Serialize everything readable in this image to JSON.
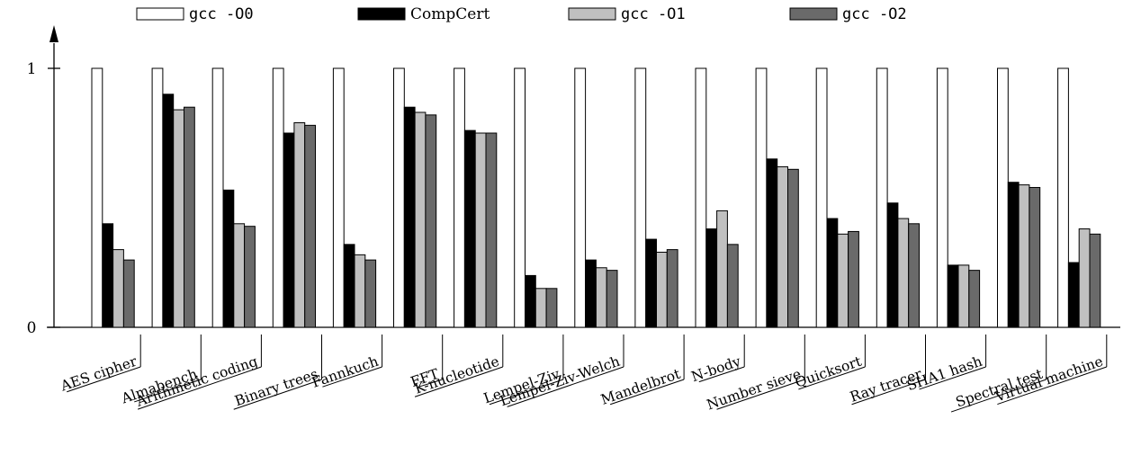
{
  "chart_data": {
    "type": "bar",
    "ylim": [
      0,
      1
    ],
    "yticks": [
      "0",
      "1"
    ],
    "legend_position": "top",
    "categories": [
      "AES cipher",
      "Almabench",
      "Arithmetic coding",
      "Binary trees",
      "Fannkuch",
      "FFT",
      "K-nucleotide",
      "Lempel-Ziv",
      "Lempel-Ziv-Welch",
      "Mandelbrot",
      "N-body",
      "Number sieve",
      "Quicksort",
      "Ray tracer",
      "SHA1 hash",
      "Spectral test",
      "Virtual machine"
    ],
    "series": [
      {
        "name": "gcc -O0",
        "color": "#ffffff",
        "font": "mono",
        "values": [
          1,
          1,
          1,
          1,
          1,
          1,
          1,
          1,
          1,
          1,
          1,
          1,
          1,
          1,
          1,
          1,
          1
        ]
      },
      {
        "name": "CompCert",
        "color": "#000000",
        "font": "serif",
        "values": [
          0.4,
          0.9,
          0.53,
          0.75,
          0.32,
          0.85,
          0.76,
          0.2,
          0.26,
          0.34,
          0.38,
          0.65,
          0.42,
          0.48,
          0.24,
          0.56,
          0.25
        ]
      },
      {
        "name": "gcc -O1",
        "color": "#c0c0c0",
        "font": "mono",
        "values": [
          0.3,
          0.84,
          0.4,
          0.79,
          0.28,
          0.83,
          0.75,
          0.15,
          0.23,
          0.29,
          0.45,
          0.62,
          0.36,
          0.42,
          0.24,
          0.55,
          0.38
        ]
      },
      {
        "name": "gcc -O2",
        "color": "#6a6a6a",
        "font": "mono",
        "values": [
          0.26,
          0.85,
          0.39,
          0.78,
          0.26,
          0.82,
          0.75,
          0.15,
          0.22,
          0.3,
          0.32,
          0.61,
          0.37,
          0.4,
          0.22,
          0.54,
          0.36
        ]
      }
    ]
  }
}
